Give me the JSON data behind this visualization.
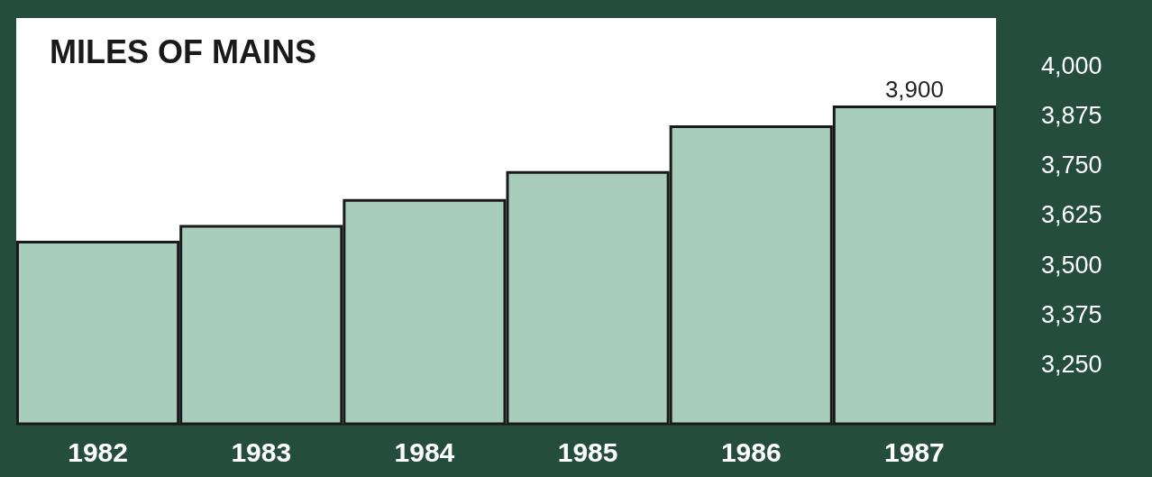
{
  "chart_data": {
    "type": "bar",
    "title": "MILES OF MAINS",
    "categories": [
      "1982",
      "1983",
      "1984",
      "1985",
      "1986",
      "1987"
    ],
    "values": [
      3560,
      3600,
      3665,
      3735,
      3850,
      3900
    ],
    "value_labels": [
      null,
      null,
      null,
      null,
      null,
      "3,900"
    ],
    "color": "#a9cdbd",
    "ylim": [
      3100,
      4120
    ],
    "yticks": [
      {
        "value": 3250,
        "label": "3,250"
      },
      {
        "value": 3375,
        "label": "3,375"
      },
      {
        "value": 3500,
        "label": "3,500"
      },
      {
        "value": 3625,
        "label": "3,625"
      },
      {
        "value": 3750,
        "label": "3,750"
      },
      {
        "value": 3875,
        "label": "3,875"
      },
      {
        "value": 4000,
        "label": "4,000"
      }
    ]
  }
}
